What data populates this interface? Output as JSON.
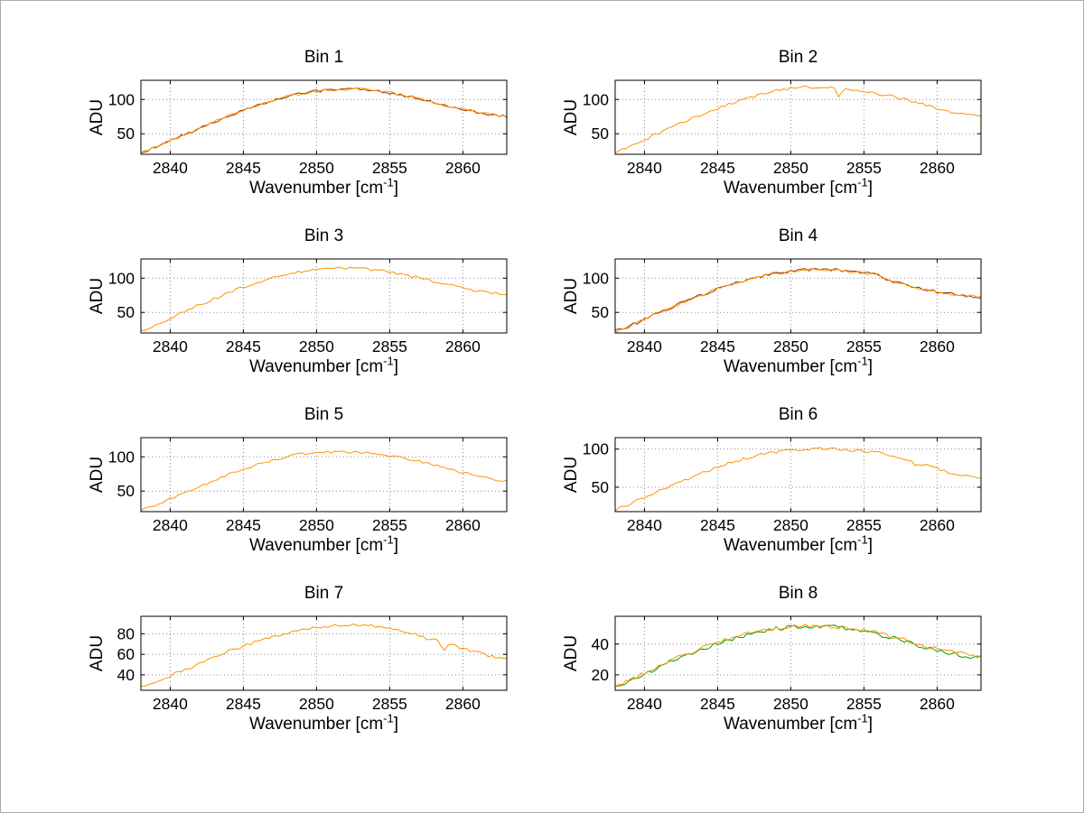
{
  "figure": {
    "window_background": "#ffffff",
    "border_color": "#ababab",
    "axis_color": "#000000",
    "grid_color": "#8a8a8a",
    "ylabel": "ADU",
    "xlabel": {
      "pre": "Wavenumber [cm",
      "sup": "-1",
      "post": "]"
    },
    "accent_orange": "#ff9300",
    "accent_green": "#00a000",
    "accent_darkred": "#993300"
  },
  "chart_data": [
    {
      "type": "line",
      "title": "Bin 1",
      "xlabel": "Wavenumber [cm^-1]",
      "ylabel": "ADU",
      "xlim": [
        2838,
        2863
      ],
      "ylim": [
        20,
        128
      ],
      "xticks": [
        2840,
        2845,
        2850,
        2855,
        2860
      ],
      "yticks": [
        50,
        100
      ],
      "grid": true,
      "legend": null,
      "x0": 2838,
      "dx": 1,
      "series": [
        {
          "name": "spectrum-dark",
          "color": "#993300",
          "noise": 2.0,
          "y": [
            22,
            31,
            40,
            49,
            58,
            67,
            76,
            84,
            92,
            99,
            105,
            109,
            112,
            114,
            115,
            115,
            113,
            110,
            106,
            101,
            96,
            91,
            86,
            81,
            78,
            75
          ]
        },
        {
          "name": "spectrum",
          "color": "#ff9300",
          "noise": 2.0,
          "y": [
            22,
            31,
            40,
            49,
            58,
            67,
            76,
            84,
            92,
            99,
            105,
            109,
            112,
            114,
            115,
            115,
            113,
            110,
            106,
            101,
            96,
            91,
            86,
            81,
            78,
            75
          ]
        }
      ]
    },
    {
      "type": "line",
      "title": "Bin 2",
      "xlabel": "Wavenumber [cm^-1]",
      "ylabel": "ADU",
      "xlim": [
        2838,
        2863
      ],
      "ylim": [
        20,
        128
      ],
      "xticks": [
        2840,
        2845,
        2850,
        2855,
        2860
      ],
      "yticks": [
        50,
        100
      ],
      "grid": true,
      "legend": null,
      "x0": 2838,
      "dx": 1,
      "series": [
        {
          "name": "spectrum",
          "color": "#ff9300",
          "noise": 2.0,
          "spikes": [
            {
              "x": 2853.3,
              "dy": -13
            }
          ],
          "y": [
            22,
            31,
            41,
            51,
            61,
            70,
            79,
            87,
            95,
            102,
            108,
            113,
            116,
            118,
            118,
            117,
            115,
            112,
            108,
            104,
            99,
            93,
            87,
            82,
            79,
            76
          ]
        }
      ]
    },
    {
      "type": "line",
      "title": "Bin 3",
      "xlabel": "Wavenumber [cm^-1]",
      "ylabel": "ADU",
      "xlim": [
        2838,
        2863
      ],
      "ylim": [
        20,
        128
      ],
      "xticks": [
        2840,
        2845,
        2850,
        2855,
        2860
      ],
      "yticks": [
        50,
        100
      ],
      "grid": true,
      "legend": null,
      "x0": 2838,
      "dx": 1,
      "series": [
        {
          "name": "spectrum",
          "color": "#ff9300",
          "noise": 2.0,
          "y": [
            22,
            31,
            41,
            51,
            61,
            70,
            79,
            87,
            94,
            100,
            106,
            110,
            113,
            115,
            115,
            114,
            112,
            109,
            105,
            100,
            95,
            90,
            85,
            81,
            78,
            76
          ]
        }
      ]
    },
    {
      "type": "line",
      "title": "Bin 4",
      "xlabel": "Wavenumber [cm^-1]",
      "ylabel": "ADU",
      "xlim": [
        2838,
        2863
      ],
      "ylim": [
        20,
        128
      ],
      "xticks": [
        2840,
        2845,
        2850,
        2855,
        2860
      ],
      "yticks": [
        50,
        100
      ],
      "grid": true,
      "legend": null,
      "x0": 2838,
      "dx": 1,
      "series": [
        {
          "name": "spectrum-dark",
          "color": "#993300",
          "noise": 2.2,
          "y": [
            22,
            30,
            40,
            50,
            59,
            68,
            76,
            84,
            91,
            97,
            103,
            107,
            110,
            112,
            112,
            112,
            110,
            108,
            104,
            95,
            89,
            84,
            80,
            77,
            74,
            72
          ]
        },
        {
          "name": "spectrum",
          "color": "#ff9300",
          "noise": 2.2,
          "y": [
            22,
            30,
            40,
            50,
            59,
            68,
            76,
            84,
            91,
            97,
            103,
            107,
            110,
            112,
            112,
            112,
            110,
            108,
            104,
            95,
            89,
            84,
            80,
            77,
            74,
            72
          ]
        }
      ]
    },
    {
      "type": "line",
      "title": "Bin 5",
      "xlabel": "Wavenumber [cm^-1]",
      "ylabel": "ADU",
      "xlim": [
        2838,
        2863
      ],
      "ylim": [
        20,
        128
      ],
      "xticks": [
        2840,
        2845,
        2850,
        2855,
        2860
      ],
      "yticks": [
        50,
        100
      ],
      "grid": true,
      "legend": null,
      "x0": 2838,
      "dx": 1,
      "series": [
        {
          "name": "spectrum",
          "color": "#ff9300",
          "noise": 2.0,
          "y": [
            22,
            30,
            39,
            48,
            57,
            66,
            74,
            82,
            89,
            95,
            100,
            104,
            106,
            107,
            107,
            106,
            105,
            102,
            98,
            93,
            88,
            82,
            77,
            72,
            68,
            65
          ]
        }
      ]
    },
    {
      "type": "line",
      "title": "Bin 6",
      "xlabel": "Wavenumber [cm^-1]",
      "ylabel": "ADU",
      "xlim": [
        2838,
        2863
      ],
      "ylim": [
        18,
        115
      ],
      "xticks": [
        2840,
        2845,
        2850,
        2855,
        2860
      ],
      "yticks": [
        50,
        100
      ],
      "grid": true,
      "legend": null,
      "x0": 2838,
      "dx": 1,
      "series": [
        {
          "name": "spectrum",
          "color": "#ff9300",
          "noise": 1.8,
          "spikes": [
            {
              "x": 2858.6,
              "dy": -6
            }
          ],
          "y": [
            20,
            28,
            37,
            45,
            53,
            61,
            69,
            76,
            83,
            88,
            93,
            96,
            99,
            100,
            101,
            100,
            99,
            97,
            95,
            91,
            86,
            80,
            74,
            69,
            65,
            62
          ]
        }
      ]
    },
    {
      "type": "line",
      "title": "Bin 7",
      "xlabel": "Wavenumber [cm^-1]",
      "ylabel": "ADU",
      "xlim": [
        2838,
        2863
      ],
      "ylim": [
        25,
        97
      ],
      "xticks": [
        2840,
        2845,
        2850,
        2855,
        2860
      ],
      "yticks": [
        40,
        60,
        80
      ],
      "grid": true,
      "legend": null,
      "x0": 2838,
      "dx": 1,
      "series": [
        {
          "name": "spectrum",
          "color": "#ff9300",
          "noise": 1.5,
          "spikes": [
            {
              "x": 2858.7,
              "dy": -7
            }
          ],
          "y": [
            28,
            33,
            39,
            45,
            51,
            57,
            63,
            68,
            73,
            77,
            81,
            84,
            86,
            88,
            88,
            88,
            87,
            85,
            82,
            78,
            74,
            70,
            66,
            62,
            58,
            55
          ]
        }
      ]
    },
    {
      "type": "line",
      "title": "Bin 8",
      "xlabel": "Wavenumber [cm^-1]",
      "ylabel": "ADU",
      "xlim": [
        2838,
        2863
      ],
      "ylim": [
        10,
        58
      ],
      "xticks": [
        2840,
        2845,
        2850,
        2855,
        2860
      ],
      "yticks": [
        20,
        40
      ],
      "grid": true,
      "legend": null,
      "x0": 2838,
      "dx": 1,
      "series": [
        {
          "name": "spectrum-green",
          "color": "#00a000",
          "noise": 1.3,
          "y": [
            12,
            16,
            20,
            25,
            29,
            33,
            37,
            40,
            43,
            46,
            48,
            50,
            51,
            51,
            51,
            51,
            50,
            48,
            46,
            44,
            41,
            38,
            36,
            34,
            32,
            31
          ]
        },
        {
          "name": "spectrum-orange",
          "color": "#ff9300",
          "noise": 1.3,
          "y": [
            13,
            17,
            21,
            26,
            30,
            34,
            38,
            41,
            44,
            47,
            49,
            50,
            51,
            52,
            52,
            51,
            50,
            49,
            47,
            45,
            42,
            39,
            37,
            35,
            33,
            32
          ]
        }
      ]
    }
  ]
}
